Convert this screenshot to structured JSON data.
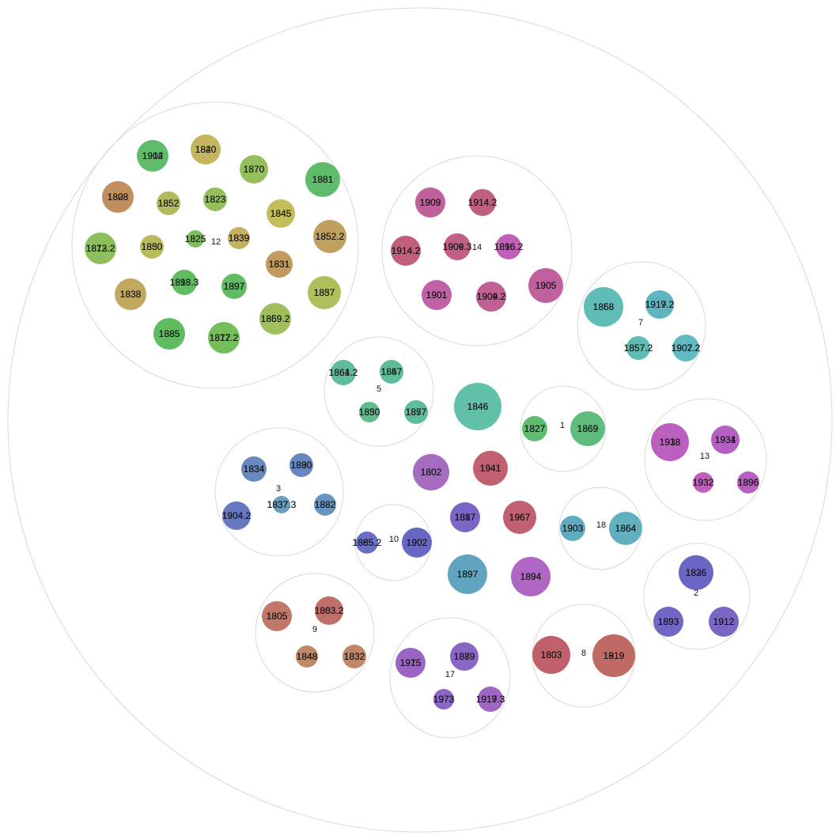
{
  "chart_data": {
    "type": "circle-packing",
    "groups": [
      {
        "name": "12",
        "nodes": [
          {
            "labels": [
              "1904",
              "1912"
            ],
            "color": "#5fbc6a"
          },
          {
            "labels": [
              "1840",
              "1820"
            ],
            "color": "#c4b55e"
          },
          {
            "labels": [
              "1870",
              "1870"
            ],
            "color": "#95bf5c"
          },
          {
            "labels": [
              "1881",
              "1881"
            ],
            "color": "#5fbc6a"
          },
          {
            "labels": [
              "1808",
              "1828"
            ],
            "color": "#c18f5e"
          },
          {
            "labels": [
              "1852",
              "1852"
            ],
            "color": "#b1bb5e"
          },
          {
            "labels": [
              "1823",
              "1823"
            ],
            "color": "#95bf5c"
          },
          {
            "labels": [
              "1845",
              "1845"
            ],
            "color": "#c4bd5e"
          },
          {
            "labels": [
              "1873.2",
              "1812.2"
            ],
            "color": "#8dbf5c"
          },
          {
            "labels": [
              "1850",
              "1830"
            ],
            "color": "#b9bb5e"
          },
          {
            "labels": [
              "1825",
              "1825"
            ],
            "color": "#7fbd5c"
          },
          {
            "labels": [
              "1839",
              "1839"
            ],
            "color": "#c4b05e"
          },
          {
            "labels": [
              "1852.2",
              "1852.2"
            ],
            "color": "#c0a05e"
          },
          {
            "labels": [
              "1838",
              "1838"
            ],
            "color": "#c1a85e"
          },
          {
            "labels": [
              "1898.3",
              "1813.3"
            ],
            "color": "#60bc60"
          },
          {
            "labels": [
              "1897",
              "1897"
            ],
            "color": "#5fbc66"
          },
          {
            "labels": [
              "1831",
              "1831"
            ],
            "color": "#c19a5e"
          },
          {
            "labels": [
              "1837",
              "1857"
            ],
            "color": "#aebf5c"
          },
          {
            "labels": [
              "1885",
              "1885"
            ],
            "color": "#5fbc60"
          },
          {
            "labels": [
              "1817.2",
              "1872.2"
            ],
            "color": "#74be5c"
          },
          {
            "labels": [
              "1869.2",
              "1859.2"
            ],
            "color": "#9fbf5c"
          }
        ]
      },
      {
        "name": "14",
        "nodes": [
          {
            "labels": [
              "1909",
              "1909"
            ],
            "color": "#c0609b"
          },
          {
            "labels": [
              "1914.2",
              "1914.2"
            ],
            "color": "#c0607e"
          },
          {
            "labels": [
              "1914.2",
              "1914.2"
            ],
            "color": "#c0607a"
          },
          {
            "labels": [
              "1909.3",
              "1906.3"
            ],
            "color": "#c06088"
          },
          {
            "labels": [
              "1896.2",
              "1816.2"
            ],
            "color": "#c060b6"
          },
          {
            "labels": [
              "1901",
              "1901"
            ],
            "color": "#c060a6"
          },
          {
            "labels": [
              "1909.2",
              "1904.2"
            ],
            "color": "#c06094"
          },
          {
            "labels": [
              "1905",
              "1905"
            ],
            "color": "#c0609e"
          }
        ]
      },
      {
        "name": "7",
        "nodes": [
          {
            "labels": [
              "1858",
              "1868"
            ],
            "color": "#60bcb6"
          },
          {
            "labels": [
              "1919.2",
              "1917.2"
            ],
            "color": "#60b6c0"
          },
          {
            "labels": [
              "1857.2",
              "1857.2"
            ],
            "color": "#60bcb2"
          },
          {
            "labels": [
              "1902.2",
              "1907.2"
            ],
            "color": "#60bac0"
          }
        ]
      },
      {
        "name": "5",
        "nodes": [
          {
            "labels": [
              "1864.2",
              "1861.2"
            ],
            "color": "#60bc9a"
          },
          {
            "labels": [
              "1847",
              "1857"
            ],
            "color": "#60bc96"
          },
          {
            "labels": [
              "1830",
              "1850"
            ],
            "color": "#60bc8c"
          },
          {
            "labels": [
              "1877",
              "1857"
            ],
            "color": "#60bc9e"
          }
        ]
      },
      {
        "name": "",
        "nodes": [
          {
            "labels": [
              "1846",
              "1846"
            ],
            "color": "#60c0a8"
          }
        ]
      },
      {
        "name": "1",
        "nodes": [
          {
            "labels": [
              "1827",
              "1827"
            ],
            "color": "#60bc72"
          },
          {
            "labels": [
              "1869",
              "1869"
            ],
            "color": "#60bc7c"
          }
        ]
      },
      {
        "name": "13",
        "nodes": [
          {
            "labels": [
              "1918",
              "1938"
            ],
            "color": "#bc60c0"
          },
          {
            "labels": [
              "1934",
              "1931"
            ],
            "color": "#b460c0"
          },
          {
            "labels": [
              "1932",
              "1932"
            ],
            "color": "#c060b8"
          },
          {
            "labels": [
              "1896",
              "1896"
            ],
            "color": "#b860c0"
          }
        ]
      },
      {
        "name": "3",
        "nodes": [
          {
            "labels": [
              "1834",
              "1834"
            ],
            "color": "#6888c0"
          },
          {
            "labels": [
              "1890",
              "1830"
            ],
            "color": "#6887c0"
          },
          {
            "labels": [
              "1837.3",
              "1837.3"
            ],
            "color": "#689ec0"
          },
          {
            "labels": [
              "1904.2",
              "1904.2"
            ],
            "color": "#6878c0"
          },
          {
            "labels": [
              "1882",
              "1882"
            ],
            "color": "#6895c0"
          }
        ]
      },
      {
        "name": "",
        "nodes": [
          {
            "labels": [
              "1802",
              "1802"
            ],
            "color": "#a66cc0"
          },
          {
            "labels": [
              "1941",
              "1941"
            ],
            "color": "#c06070"
          }
        ]
      },
      {
        "name": "10",
        "nodes": [
          {
            "labels": [
              "1885.2",
              "1865.2"
            ],
            "color": "#6870c4"
          },
          {
            "labels": [
              "1902",
              "1902"
            ],
            "color": "#6868c4"
          }
        ]
      },
      {
        "name": "",
        "nodes": [
          {
            "labels": [
              "1887",
              "1817"
            ],
            "color": "#7a66c4"
          },
          {
            "labels": [
              "1967",
              "1967"
            ],
            "color": "#c06070"
          },
          {
            "labels": [
              "1897",
              "1897"
            ],
            "color": "#60a4c0"
          },
          {
            "labels": [
              "1894",
              "1894"
            ],
            "color": "#b066c4"
          }
        ]
      },
      {
        "name": "18",
        "nodes": [
          {
            "labels": [
              "1903",
              "1903"
            ],
            "color": "#60abc0"
          },
          {
            "labels": [
              "1864",
              "1864"
            ],
            "color": "#60b0c0"
          }
        ]
      },
      {
        "name": "2",
        "nodes": [
          {
            "labels": [
              "1836",
              "1826"
            ],
            "color": "#6a66c4"
          },
          {
            "labels": [
              "1893",
              "1893"
            ],
            "color": "#7068c4"
          },
          {
            "labels": [
              "1912",
              "1912"
            ],
            "color": "#7868c4"
          }
        ]
      },
      {
        "name": "9",
        "nodes": [
          {
            "labels": [
              "1805",
              "1805"
            ],
            "color": "#c0786a"
          },
          {
            "labels": [
              "1863.2",
              "1803.2"
            ],
            "color": "#c0706a"
          },
          {
            "labels": [
              "1848",
              "1848"
            ],
            "color": "#c08a6a"
          },
          {
            "labels": [
              "1832",
              "1832"
            ],
            "color": "#c0866a"
          }
        ]
      },
      {
        "name": "17",
        "nodes": [
          {
            "labels": [
              "1975",
              "1915"
            ],
            "color": "#9a66c4"
          },
          {
            "labels": [
              "1889",
              "1879"
            ],
            "color": "#8866c4"
          },
          {
            "labels": [
              "1973",
              "1973"
            ],
            "color": "#8a66c4"
          },
          {
            "labels": [
              "1917.3",
              "1919.3"
            ],
            "color": "#a066c4"
          }
        ]
      },
      {
        "name": "8",
        "nodes": [
          {
            "labels": [
              "1803",
              "1803"
            ],
            "color": "#c0606a"
          },
          {
            "labels": [
              "1919",
              "1819"
            ],
            "color": "#c06a66"
          }
        ]
      }
    ]
  }
}
